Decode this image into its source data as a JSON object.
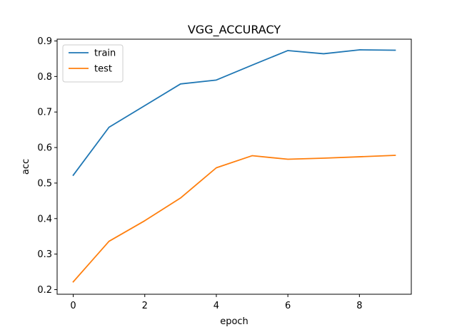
{
  "chart_data": {
    "type": "line",
    "title": "VGG_ACCURACY",
    "xlabel": "epoch",
    "ylabel": "acc",
    "x": [
      0,
      1,
      2,
      3,
      4,
      5,
      6,
      7,
      8,
      9
    ],
    "xlim": [
      -0.45,
      9.45
    ],
    "ylim": [
      0.187,
      0.905
    ],
    "xticks": [
      0,
      2,
      4,
      6,
      8
    ],
    "yticks": [
      0.2,
      0.3,
      0.4,
      0.5,
      0.6,
      0.7,
      0.8,
      0.9
    ],
    "xtick_labels": [
      "0",
      "2",
      "4",
      "6",
      "8"
    ],
    "ytick_labels": [
      "0.2",
      "0.3",
      "0.4",
      "0.5",
      "0.6",
      "0.7",
      "0.8",
      "0.9"
    ],
    "legend_position": "top-left",
    "grid": false,
    "series": [
      {
        "name": "train",
        "color": "#1f77b4",
        "values": [
          0.522,
          0.657,
          0.718,
          0.779,
          0.79,
          0.832,
          0.873,
          0.864,
          0.875,
          0.874
        ]
      },
      {
        "name": "test",
        "color": "#ff7f0e",
        "values": [
          0.222,
          0.336,
          0.394,
          0.458,
          0.543,
          0.577,
          0.567,
          0.57,
          0.574,
          0.578
        ]
      }
    ]
  }
}
